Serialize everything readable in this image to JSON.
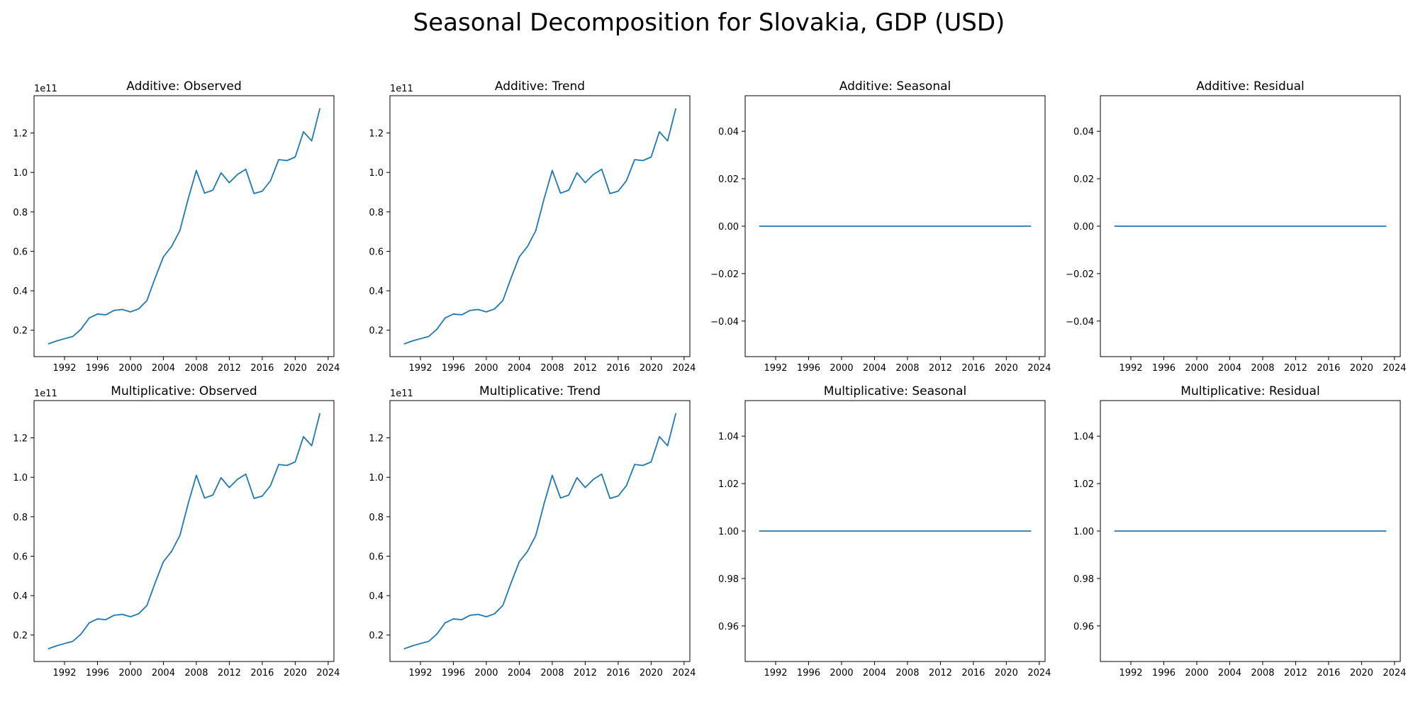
{
  "suptitle": "Seasonal Decomposition for Slovakia, GDP (USD)",
  "line_color": "#1f77b4",
  "chart_data": [
    {
      "type": "line",
      "title": "Additive: Observed",
      "xlabel": "",
      "ylabel": "",
      "offset_text": "1e11",
      "xlim": [
        1988.3,
        2024.7
      ],
      "ylim": [
        0.066,
        1.389
      ],
      "xticks": [
        1992,
        1996,
        2000,
        2004,
        2008,
        2012,
        2016,
        2020,
        2024
      ],
      "yticks": [
        0.2,
        0.4,
        0.6,
        0.8,
        1.0,
        1.2
      ],
      "ytick_decimals": 1,
      "series": [
        {
          "x": [
            1990,
            1991,
            1992,
            1993,
            1994,
            1995,
            1996,
            1997,
            1998,
            1999,
            2000,
            2001,
            2002,
            2003,
            2004,
            2005,
            2006,
            2007,
            2008,
            2009,
            2010,
            2011,
            2012,
            2013,
            2014,
            2015,
            2016,
            2017,
            2018,
            2019,
            2020,
            2021,
            2022,
            2023
          ],
          "values": [
            0.13,
            0.145,
            0.157,
            0.168,
            0.205,
            0.262,
            0.282,
            0.278,
            0.3,
            0.305,
            0.293,
            0.308,
            0.35,
            0.465,
            0.572,
            0.625,
            0.705,
            0.865,
            1.01,
            0.895,
            0.91,
            0.998,
            0.948,
            0.99,
            1.016,
            0.893,
            0.905,
            0.958,
            1.065,
            1.06,
            1.078,
            1.206,
            1.16,
            1.325
          ]
        }
      ]
    },
    {
      "type": "line",
      "title": "Additive: Trend",
      "xlabel": "",
      "ylabel": "",
      "offset_text": "1e11",
      "xlim": [
        1988.3,
        2024.7
      ],
      "ylim": [
        0.066,
        1.389
      ],
      "xticks": [
        1992,
        1996,
        2000,
        2004,
        2008,
        2012,
        2016,
        2020,
        2024
      ],
      "yticks": [
        0.2,
        0.4,
        0.6,
        0.8,
        1.0,
        1.2
      ],
      "ytick_decimals": 1,
      "series": [
        {
          "x": [
            1990,
            1991,
            1992,
            1993,
            1994,
            1995,
            1996,
            1997,
            1998,
            1999,
            2000,
            2001,
            2002,
            2003,
            2004,
            2005,
            2006,
            2007,
            2008,
            2009,
            2010,
            2011,
            2012,
            2013,
            2014,
            2015,
            2016,
            2017,
            2018,
            2019,
            2020,
            2021,
            2022,
            2023
          ],
          "values": [
            0.13,
            0.145,
            0.157,
            0.168,
            0.205,
            0.262,
            0.282,
            0.278,
            0.3,
            0.305,
            0.293,
            0.308,
            0.35,
            0.465,
            0.572,
            0.625,
            0.705,
            0.865,
            1.01,
            0.895,
            0.91,
            0.998,
            0.948,
            0.99,
            1.016,
            0.893,
            0.905,
            0.958,
            1.065,
            1.06,
            1.078,
            1.206,
            1.16,
            1.325
          ]
        }
      ]
    },
    {
      "type": "line",
      "title": "Additive: Seasonal",
      "xlabel": "",
      "ylabel": "",
      "offset_text": "",
      "xlim": [
        1988.3,
        2024.7
      ],
      "ylim": [
        -0.055,
        0.055
      ],
      "xticks": [
        1992,
        1996,
        2000,
        2004,
        2008,
        2012,
        2016,
        2020,
        2024
      ],
      "yticks": [
        -0.04,
        -0.02,
        0.0,
        0.02,
        0.04
      ],
      "ytick_decimals": 2,
      "series": [
        {
          "x": [
            1990,
            2023
          ],
          "values": [
            0.0,
            0.0
          ]
        }
      ]
    },
    {
      "type": "line",
      "title": "Additive: Residual",
      "xlabel": "",
      "ylabel": "",
      "offset_text": "",
      "xlim": [
        1988.3,
        2024.7
      ],
      "ylim": [
        -0.055,
        0.055
      ],
      "xticks": [
        1992,
        1996,
        2000,
        2004,
        2008,
        2012,
        2016,
        2020,
        2024
      ],
      "yticks": [
        -0.04,
        -0.02,
        0.0,
        0.02,
        0.04
      ],
      "ytick_decimals": 2,
      "series": [
        {
          "x": [
            1990,
            2023
          ],
          "values": [
            0.0,
            0.0
          ]
        }
      ]
    },
    {
      "type": "line",
      "title": "Multiplicative: Observed",
      "xlabel": "",
      "ylabel": "",
      "offset_text": "1e11",
      "xlim": [
        1988.3,
        2024.7
      ],
      "ylim": [
        0.066,
        1.389
      ],
      "xticks": [
        1992,
        1996,
        2000,
        2004,
        2008,
        2012,
        2016,
        2020,
        2024
      ],
      "yticks": [
        0.2,
        0.4,
        0.6,
        0.8,
        1.0,
        1.2
      ],
      "ytick_decimals": 1,
      "series": [
        {
          "x": [
            1990,
            1991,
            1992,
            1993,
            1994,
            1995,
            1996,
            1997,
            1998,
            1999,
            2000,
            2001,
            2002,
            2003,
            2004,
            2005,
            2006,
            2007,
            2008,
            2009,
            2010,
            2011,
            2012,
            2013,
            2014,
            2015,
            2016,
            2017,
            2018,
            2019,
            2020,
            2021,
            2022,
            2023
          ],
          "values": [
            0.13,
            0.145,
            0.157,
            0.168,
            0.205,
            0.262,
            0.282,
            0.278,
            0.3,
            0.305,
            0.293,
            0.308,
            0.35,
            0.465,
            0.572,
            0.625,
            0.705,
            0.865,
            1.01,
            0.895,
            0.91,
            0.998,
            0.948,
            0.99,
            1.016,
            0.893,
            0.905,
            0.958,
            1.065,
            1.06,
            1.078,
            1.206,
            1.16,
            1.325
          ]
        }
      ]
    },
    {
      "type": "line",
      "title": "Multiplicative: Trend",
      "xlabel": "",
      "ylabel": "",
      "offset_text": "1e11",
      "xlim": [
        1988.3,
        2024.7
      ],
      "ylim": [
        0.066,
        1.389
      ],
      "xticks": [
        1992,
        1996,
        2000,
        2004,
        2008,
        2012,
        2016,
        2020,
        2024
      ],
      "yticks": [
        0.2,
        0.4,
        0.6,
        0.8,
        1.0,
        1.2
      ],
      "ytick_decimals": 1,
      "series": [
        {
          "x": [
            1990,
            1991,
            1992,
            1993,
            1994,
            1995,
            1996,
            1997,
            1998,
            1999,
            2000,
            2001,
            2002,
            2003,
            2004,
            2005,
            2006,
            2007,
            2008,
            2009,
            2010,
            2011,
            2012,
            2013,
            2014,
            2015,
            2016,
            2017,
            2018,
            2019,
            2020,
            2021,
            2022,
            2023
          ],
          "values": [
            0.13,
            0.145,
            0.157,
            0.168,
            0.205,
            0.262,
            0.282,
            0.278,
            0.3,
            0.305,
            0.293,
            0.308,
            0.35,
            0.465,
            0.572,
            0.625,
            0.705,
            0.865,
            1.01,
            0.895,
            0.91,
            0.998,
            0.948,
            0.99,
            1.016,
            0.893,
            0.905,
            0.958,
            1.065,
            1.06,
            1.078,
            1.206,
            1.16,
            1.325
          ]
        }
      ]
    },
    {
      "type": "line",
      "title": "Multiplicative: Seasonal",
      "xlabel": "",
      "ylabel": "",
      "offset_text": "",
      "xlim": [
        1988.3,
        2024.7
      ],
      "ylim": [
        0.945,
        1.055
      ],
      "xticks": [
        1992,
        1996,
        2000,
        2004,
        2008,
        2012,
        2016,
        2020,
        2024
      ],
      "yticks": [
        0.96,
        0.98,
        1.0,
        1.02,
        1.04
      ],
      "ytick_decimals": 2,
      "series": [
        {
          "x": [
            1990,
            2023
          ],
          "values": [
            1.0,
            1.0
          ]
        }
      ]
    },
    {
      "type": "line",
      "title": "Multiplicative: Residual",
      "xlabel": "",
      "ylabel": "",
      "offset_text": "",
      "xlim": [
        1988.3,
        2024.7
      ],
      "ylim": [
        0.945,
        1.055
      ],
      "xticks": [
        1992,
        1996,
        2000,
        2004,
        2008,
        2012,
        2016,
        2020,
        2024
      ],
      "yticks": [
        0.96,
        0.98,
        1.0,
        1.02,
        1.04
      ],
      "ytick_decimals": 2,
      "series": [
        {
          "x": [
            1990,
            2023
          ],
          "values": [
            1.0,
            1.0
          ]
        }
      ]
    }
  ]
}
